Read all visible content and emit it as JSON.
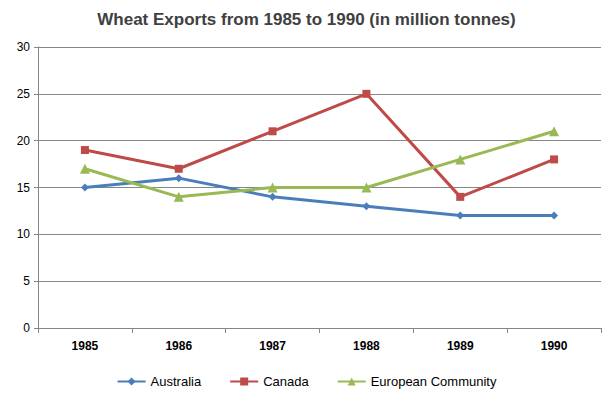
{
  "chart_data": {
    "type": "line",
    "title": "Wheat Exports from 1985 to 1990 (in million tonnes)",
    "categories": [
      "1985",
      "1986",
      "1987",
      "1988",
      "1989",
      "1990"
    ],
    "series": [
      {
        "name": "Australia",
        "color": "#4a7ebb",
        "marker": "diamond",
        "values": [
          15,
          16,
          14,
          13,
          12,
          12
        ]
      },
      {
        "name": "Canada",
        "color": "#be4b48",
        "marker": "square",
        "values": [
          19,
          17,
          21,
          25,
          14,
          18
        ]
      },
      {
        "name": "European Community",
        "color": "#98b954",
        "marker": "triangle",
        "values": [
          17,
          14,
          15,
          15,
          18,
          21
        ]
      }
    ],
    "ylim": [
      0,
      30
    ],
    "yticks": [
      0,
      5,
      10,
      15,
      20,
      25,
      30
    ],
    "grid": true,
    "legend": "bottom"
  }
}
